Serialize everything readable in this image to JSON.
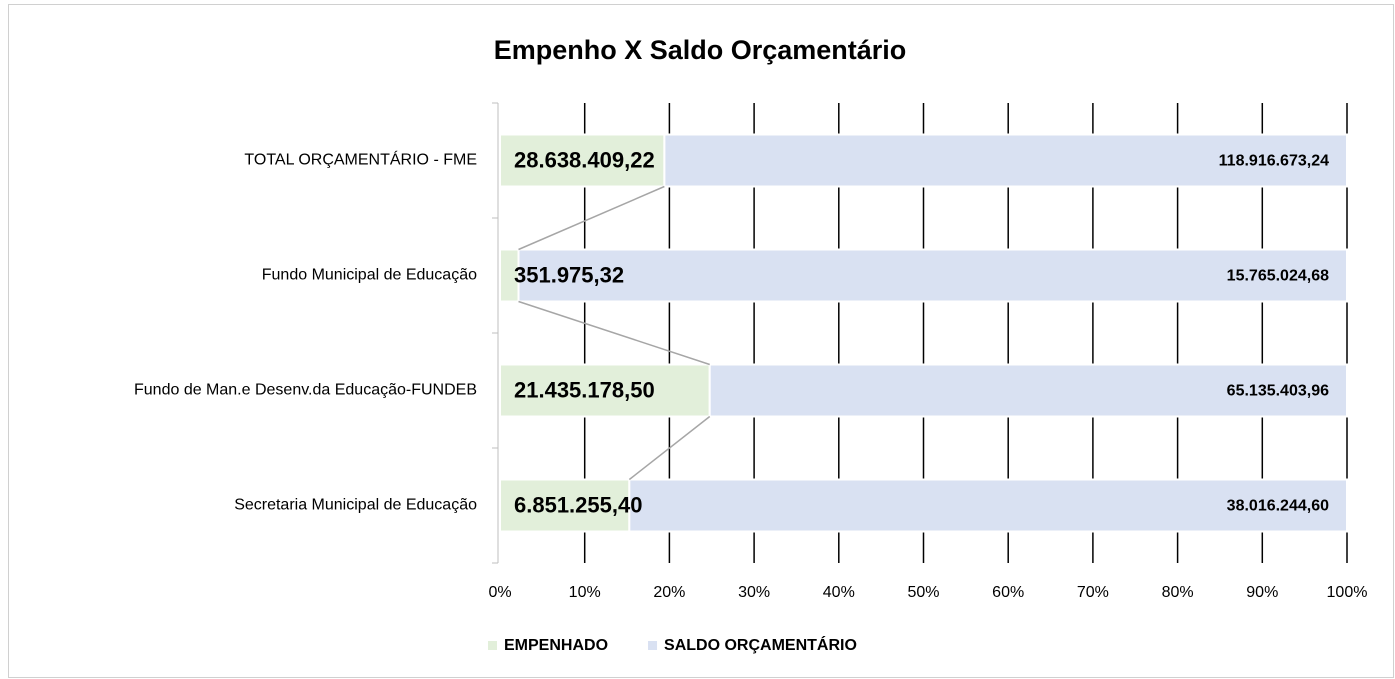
{
  "chart_data": {
    "type": "stacked-bar-100",
    "orientation": "horizontal",
    "title": "Empenho X Saldo Orçamentário",
    "categories": [
      "TOTAL ORÇAMENTÁRIO - FME",
      "Fundo Municipal de Educação",
      "Fundo de Man.e Desenv.da Educação-FUNDEB",
      "Secretaria Municipal de Educação"
    ],
    "series": [
      {
        "name": "EMPENHADO",
        "color": "#e2efda",
        "legend_color": "#375623",
        "values": [
          28638409.22,
          351975.32,
          21435178.5,
          6851255.4
        ],
        "value_labels": [
          "28.638.409,22",
          "351.975,32",
          "21.435.178,50",
          "6.851.255,40"
        ]
      },
      {
        "name": "SALDO ORÇAMENTÁRIO",
        "color": "#d9e1f2",
        "legend_color": "#1f3864",
        "values": [
          118916673.24,
          15765024.68,
          65135403.96,
          38016244.6
        ],
        "value_labels": [
          "118.916.673,24",
          "15.765.024,68",
          "65.135.403,96",
          "38.016.244,60"
        ]
      }
    ],
    "xlim": [
      0,
      100
    ],
    "xticks": [
      {
        "value": 0,
        "label": "0%"
      },
      {
        "value": 10,
        "label": "10%"
      },
      {
        "value": 20,
        "label": "20%"
      },
      {
        "value": 30,
        "label": "30%"
      },
      {
        "value": 40,
        "label": "40%"
      },
      {
        "value": 50,
        "label": "50%"
      },
      {
        "value": 60,
        "label": "60%"
      },
      {
        "value": 70,
        "label": "70%"
      },
      {
        "value": 80,
        "label": "80%"
      },
      {
        "value": 90,
        "label": "90%"
      },
      {
        "value": 100,
        "label": "100%"
      }
    ],
    "grid": true,
    "legend": "bottom"
  }
}
